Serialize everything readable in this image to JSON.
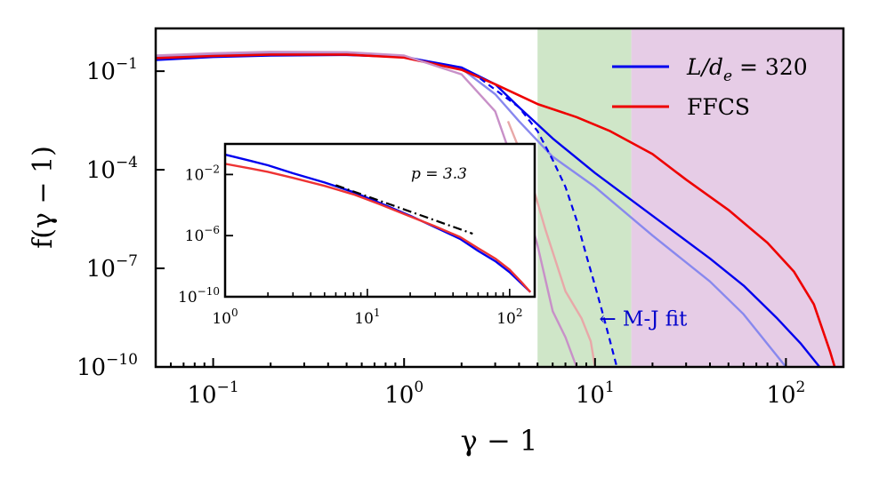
{
  "chart_data": {
    "type": "line",
    "main": {
      "xlabel": "γ − 1",
      "ylabel": "f(γ − 1)",
      "xscale": "log",
      "yscale": "log",
      "xlim": [
        0.05,
        200
      ],
      "ylim": [
        1e-10,
        2
      ],
      "x_ticks": [
        {
          "value": 0.1,
          "base": "10",
          "exp": "−1"
        },
        {
          "value": 1,
          "base": "10",
          "exp": "0"
        },
        {
          "value": 10,
          "base": "10",
          "exp": "1"
        },
        {
          "value": 100,
          "base": "10",
          "exp": "2"
        }
      ],
      "y_ticks": [
        {
          "value": 0.1,
          "base": "10",
          "exp": "−1"
        },
        {
          "value": 0.0001,
          "base": "10",
          "exp": "−4"
        },
        {
          "value": 1e-07,
          "base": "10",
          "exp": "−7"
        },
        {
          "value": 1e-10,
          "base": "10",
          "exp": "−10"
        }
      ],
      "shaded_regions": [
        {
          "x0": 5,
          "x1": 15.5,
          "color": "#cfe6c8"
        },
        {
          "x0": 15.5,
          "x1": 200,
          "color": "#e6cce6"
        }
      ],
      "legend": {
        "placement": "top-right",
        "entries": [
          {
            "label": "L/d",
            "sub": "e",
            "eq": " = 320",
            "color": "#0000ee"
          },
          {
            "label": "FFCS",
            "sub": "",
            "eq": "",
            "color": "#ee0000"
          }
        ]
      },
      "annotation": {
        "text": "← M-J fit",
        "x": 10.5,
        "y": 3e-09,
        "color": "#0000cc"
      },
      "series": [
        {
          "id": "blue-light",
          "color": "#8888ee",
          "width": 2.4,
          "points": [
            [
              0.05,
              0.28
            ],
            [
              0.1,
              0.32
            ],
            [
              0.2,
              0.35
            ],
            [
              0.5,
              0.34
            ],
            [
              1,
              0.28
            ],
            [
              2,
              0.12
            ],
            [
              3,
              0.02
            ],
            [
              4,
              0.003
            ],
            [
              6,
              0.00025
            ],
            [
              10,
              3e-05
            ],
            [
              20,
              1e-06
            ],
            [
              40,
              4e-08
            ],
            [
              60,
              4e-09
            ],
            [
              80,
              5e-10
            ],
            [
              100,
              1e-10
            ]
          ]
        },
        {
          "id": "blue",
          "color": "#0000ee",
          "width": 2.4,
          "points": [
            [
              0.05,
              0.22
            ],
            [
              0.1,
              0.27
            ],
            [
              0.2,
              0.3
            ],
            [
              0.5,
              0.31
            ],
            [
              1,
              0.27
            ],
            [
              2,
              0.13
            ],
            [
              3,
              0.04
            ],
            [
              4,
              0.008
            ],
            [
              6,
              0.0009
            ],
            [
              10,
              8e-05
            ],
            [
              20,
              4e-06
            ],
            [
              40,
              2e-07
            ],
            [
              60,
              3e-08
            ],
            [
              90,
              3e-09
            ],
            [
              120,
              5e-10
            ],
            [
              150,
              1e-10
            ]
          ]
        },
        {
          "id": "red",
          "color": "#ee0000",
          "width": 2.6,
          "points": [
            [
              0.05,
              0.25
            ],
            [
              0.1,
              0.29
            ],
            [
              0.2,
              0.32
            ],
            [
              0.5,
              0.32
            ],
            [
              1,
              0.26
            ],
            [
              2,
              0.11
            ],
            [
              3,
              0.04
            ],
            [
              5,
              0.01
            ],
            [
              8,
              0.004
            ],
            [
              12,
              0.0015
            ],
            [
              20,
              0.0003
            ],
            [
              30,
              5e-05
            ],
            [
              50,
              6e-06
            ],
            [
              80,
              6e-07
            ],
            [
              110,
              8e-08
            ],
            [
              140,
              8e-09
            ],
            [
              170,
              3e-10
            ],
            [
              180,
              1e-10
            ]
          ]
        },
        {
          "id": "blue-magenta-light",
          "color": "#c890c8",
          "width": 2.4,
          "points": [
            [
              0.05,
              0.3
            ],
            [
              0.1,
              0.35
            ],
            [
              0.2,
              0.39
            ],
            [
              0.5,
              0.38
            ],
            [
              1,
              0.3
            ],
            [
              2,
              0.08
            ],
            [
              3,
              0.006
            ],
            [
              4,
              5e-05
            ],
            [
              5,
              5e-07
            ],
            [
              6,
              5e-09
            ],
            [
              7,
              8e-10
            ],
            [
              8,
              1e-10
            ]
          ]
        },
        {
          "id": "pink-fading",
          "color": "#e8a8a8",
          "width": 2.4,
          "points": [
            [
              3.5,
              0.003
            ],
            [
              4.5,
              8e-05
            ],
            [
              5.5,
              1.5e-06
            ],
            [
              7,
              2e-08
            ],
            [
              8.5,
              3e-09
            ],
            [
              9.5,
              6e-10
            ],
            [
              10,
              1e-10
            ]
          ]
        }
      ],
      "fit": {
        "color": "#0000ee",
        "dash": true,
        "points": [
          [
            2.5,
            0.06
          ],
          [
            4,
            0.008
          ],
          [
            5,
            0.0015
          ],
          [
            6,
            0.0002
          ],
          [
            7,
            3e-05
          ],
          [
            8,
            3e-06
          ],
          [
            9,
            2.5e-07
          ],
          [
            10,
            3e-08
          ],
          [
            11,
            4e-09
          ],
          [
            12,
            6e-10
          ],
          [
            13,
            1e-10
          ]
        ]
      }
    },
    "inset": {
      "xscale": "log",
      "yscale": "log",
      "xlim": [
        1,
        150
      ],
      "ylim": [
        1e-10,
        1
      ],
      "x_ticks": [
        {
          "value": 1,
          "base": "10",
          "exp": "0"
        },
        {
          "value": 10,
          "base": "10",
          "exp": "1"
        },
        {
          "value": 100,
          "base": "10",
          "exp": "2"
        }
      ],
      "y_ticks": [
        {
          "value": 0.01,
          "base": "10",
          "exp": "−2"
        },
        {
          "value": 1e-06,
          "base": "10",
          "exp": "−6"
        },
        {
          "value": 1e-10,
          "base": "10",
          "exp": "−10"
        }
      ],
      "annotation": {
        "label": "p = 3.3"
      },
      "series": [
        {
          "id": "inset-blue",
          "color": "#0000ee",
          "width": 2.4,
          "points": [
            [
              1,
              0.2
            ],
            [
              1.5,
              0.08
            ],
            [
              2,
              0.04
            ],
            [
              3,
              0.012
            ],
            [
              5,
              0.003
            ],
            [
              8,
              0.0007
            ],
            [
              12,
              0.00015
            ],
            [
              20,
              2e-05
            ],
            [
              30,
              3.5e-06
            ],
            [
              45,
              6e-07
            ],
            [
              60,
              1e-07
            ],
            [
              80,
              2e-08
            ],
            [
              100,
              4e-09
            ],
            [
              120,
              8e-10
            ],
            [
              140,
              2e-10
            ]
          ]
        },
        {
          "id": "inset-red",
          "color": "#ee3333",
          "width": 2.4,
          "points": [
            [
              1,
              0.05
            ],
            [
              1.5,
              0.025
            ],
            [
              2,
              0.015
            ],
            [
              3,
              0.006
            ],
            [
              5,
              0.0018
            ],
            [
              8,
              0.0005
            ],
            [
              12,
              0.00012
            ],
            [
              20,
              1.8e-05
            ],
            [
              30,
              4e-06
            ],
            [
              45,
              8e-07
            ],
            [
              60,
              1.5e-07
            ],
            [
              80,
              3e-08
            ],
            [
              100,
              6e-09
            ],
            [
              120,
              1e-09
            ],
            [
              140,
              2e-10
            ]
          ]
        }
      ],
      "powerlaw": {
        "p": 3.3,
        "x0": 6,
        "x1": 55,
        "y0": 0.002
      }
    }
  }
}
